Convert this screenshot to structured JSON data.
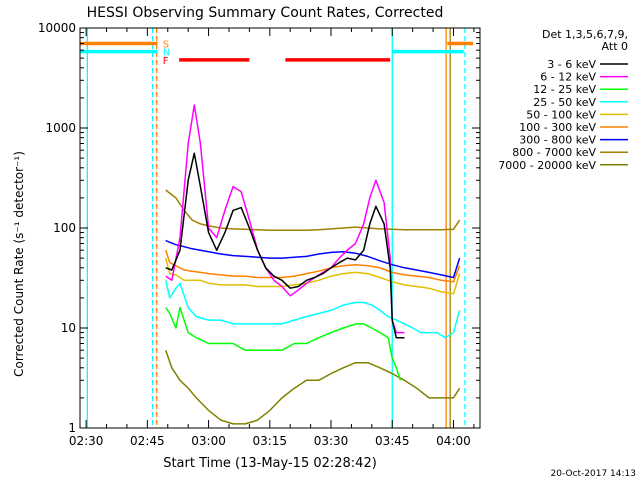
{
  "chart_data": {
    "type": "line",
    "title": "HESSI Observing Summary Count Rates, Corrected",
    "ylabel": "Corrected Count Rate (s⁻¹ detector⁻¹)",
    "xlabel": "Start Time (13-May-15 02:28:42)",
    "footer": "20-Oct-2017 14:13",
    "legend_header": [
      "Det 1,3,5,6,7,9,",
      "Att 0"
    ],
    "legend_placement": "right",
    "x_range_minutes": [
      -1.5,
      96.5
    ],
    "y_range": [
      1,
      10000
    ],
    "y_scale": "log",
    "x_ticks": [
      {
        "t": 0,
        "label": "02:30"
      },
      {
        "t": 15,
        "label": "02:45"
      },
      {
        "t": 30,
        "label": "03:00"
      },
      {
        "t": 45,
        "label": "03:15"
      },
      {
        "t": 60,
        "label": "03:30"
      },
      {
        "t": 75,
        "label": "03:45"
      },
      {
        "t": 90,
        "label": "04:00"
      }
    ],
    "y_ticks": [
      {
        "v": 1,
        "label": "1"
      },
      {
        "v": 10,
        "label": "10"
      },
      {
        "v": 100,
        "label": "100"
      },
      {
        "v": 1000,
        "label": "1000"
      },
      {
        "v": 10000,
        "label": "10000"
      }
    ],
    "flag_bars": [
      {
        "label": "S",
        "color": "#ff8000",
        "y": 7000,
        "segments": [
          [
            -1.5,
            17.5
          ],
          [
            88.5,
            94.8
          ]
        ]
      },
      {
        "label": "N",
        "color": "#00ffff",
        "y": 5800,
        "segments": [
          [
            -1.5,
            17.5
          ],
          [
            75.0,
            92.5
          ]
        ]
      },
      {
        "label": "F",
        "color": "#ff0000",
        "y": 4800,
        "segments": [
          [
            22.8,
            40.0
          ],
          [
            48.8,
            74.5
          ]
        ]
      }
    ],
    "vertical_lines": [
      {
        "t": 0.3,
        "color": "#00ffff",
        "style": "solid"
      },
      {
        "t": 16.3,
        "color": "#00ffff",
        "style": "dashed"
      },
      {
        "t": 17.3,
        "color": "#ff8000",
        "style": "dashed"
      },
      {
        "t": 75.0,
        "color": "#00ffff",
        "style": "solid"
      },
      {
        "t": 88.2,
        "color": "#ff8000",
        "style": "solid"
      },
      {
        "t": 89.2,
        "color": "#a08000",
        "style": "solid"
      },
      {
        "t": 92.8,
        "color": "#00ffff",
        "style": "dashed"
      }
    ],
    "series": [
      {
        "name": "3 - 6 keV",
        "color": "#000000",
        "x": [
          19.5,
          21,
          23,
          25,
          26.5,
          28,
          30,
          32,
          34,
          36,
          38,
          40,
          42,
          44,
          46,
          48,
          50,
          52,
          54,
          56,
          58,
          60,
          62,
          64,
          66,
          68,
          69.5,
          71,
          73,
          74.5,
          75,
          76,
          78
        ],
        "y": [
          40,
          38,
          60,
          300,
          560,
          260,
          90,
          60,
          90,
          150,
          160,
          100,
          60,
          40,
          33,
          30,
          25,
          26,
          30,
          32,
          35,
          40,
          45,
          50,
          48,
          60,
          110,
          165,
          110,
          40,
          12,
          8,
          8
        ]
      },
      {
        "name": "6 - 12 keV",
        "color": "#ff00ff",
        "x": [
          19.5,
          21,
          23,
          25,
          26.5,
          28,
          30,
          32,
          34,
          36,
          38,
          40,
          42,
          44,
          46,
          48,
          50,
          52,
          54,
          56,
          58,
          60,
          62,
          64,
          66,
          68,
          69.5,
          71,
          73,
          74.5,
          75,
          76,
          78
        ],
        "y": [
          33,
          30,
          80,
          700,
          1700,
          700,
          100,
          80,
          150,
          260,
          230,
          120,
          60,
          40,
          30,
          26,
          21,
          24,
          28,
          32,
          36,
          40,
          50,
          60,
          70,
          110,
          200,
          300,
          180,
          50,
          12,
          9,
          9
        ]
      },
      {
        "name": "12 - 25 keV",
        "color": "#00ff00",
        "x": [
          19.5,
          20.5,
          22,
          23,
          25,
          27,
          30,
          33,
          36,
          39,
          42,
          45,
          48,
          51,
          54,
          57,
          60,
          63,
          66,
          68,
          70,
          72,
          74,
          75,
          76,
          77
        ],
        "y": [
          16,
          14,
          10,
          16,
          9,
          8,
          7,
          7,
          7,
          6,
          6,
          6,
          6,
          7,
          7,
          8,
          9,
          10,
          11,
          11,
          10,
          9,
          8,
          5,
          4,
          3
        ]
      },
      {
        "name": "25 - 50 keV",
        "color": "#00ffff",
        "x": [
          19.5,
          20.5,
          22,
          23,
          25,
          27,
          30,
          33,
          36,
          39,
          42,
          45,
          48,
          51,
          54,
          57,
          60,
          63,
          66,
          68,
          70,
          72,
          74,
          76,
          78,
          80,
          82,
          84,
          86,
          88,
          90,
          91.5
        ],
        "y": [
          30,
          20,
          25,
          28,
          16,
          13,
          12,
          12,
          11,
          11,
          11,
          11,
          11,
          12,
          13,
          14,
          15,
          17,
          18,
          18,
          17,
          15,
          13,
          12,
          11,
          10,
          9,
          9,
          9,
          8,
          9,
          15
        ]
      },
      {
        "name": "50 - 100 keV",
        "color": "#e0c000",
        "x": [
          19.5,
          20.5,
          22,
          24,
          26,
          28,
          30,
          33,
          36,
          39,
          42,
          45,
          48,
          51,
          54,
          57,
          60,
          63,
          66,
          69,
          72,
          75,
          78,
          81,
          84,
          87,
          90,
          91.5
        ],
        "y": [
          50,
          35,
          34,
          30,
          30,
          30,
          28,
          27,
          27,
          27,
          26,
          26,
          26,
          27,
          28,
          30,
          33,
          35,
          36,
          35,
          32,
          29,
          27,
          26,
          25,
          23,
          22,
          35
        ]
      },
      {
        "name": "100 - 300 keV",
        "color": "#ff8000",
        "x": [
          19.5,
          20.5,
          22,
          24,
          26,
          28,
          30,
          33,
          36,
          39,
          42,
          45,
          48,
          51,
          54,
          57,
          60,
          63,
          66,
          69,
          72,
          75,
          78,
          81,
          84,
          87,
          90,
          91.5
        ],
        "y": [
          60,
          45,
          42,
          38,
          37,
          36,
          35,
          34,
          33,
          33,
          32,
          32,
          32,
          33,
          35,
          37,
          40,
          42,
          43,
          42,
          40,
          36,
          34,
          33,
          32,
          30,
          29,
          42
        ]
      },
      {
        "name": "300 - 800 keV",
        "color": "#0000ff",
        "x": [
          19.5,
          20.5,
          22,
          24,
          26,
          28,
          30,
          33,
          36,
          39,
          42,
          45,
          48,
          51,
          54,
          57,
          60,
          63,
          66,
          69,
          72,
          75,
          78,
          81,
          84,
          87,
          90,
          91.5
        ],
        "y": [
          75,
          72,
          68,
          65,
          62,
          60,
          58,
          55,
          53,
          52,
          51,
          50,
          50,
          51,
          52,
          55,
          57,
          58,
          56,
          52,
          47,
          43,
          40,
          38,
          36,
          34,
          32,
          50
        ]
      },
      {
        "name": "800 - 7000 keV",
        "color": "#a08000",
        "x": [
          19.5,
          22,
          24,
          26,
          28,
          30,
          33,
          36,
          39,
          42,
          45,
          48,
          51,
          54,
          57,
          60,
          63,
          66,
          69,
          72,
          75,
          78,
          81,
          84,
          87,
          90,
          91.5
        ],
        "y": [
          240,
          200,
          150,
          120,
          110,
          105,
          100,
          98,
          97,
          96,
          95,
          95,
          95,
          95,
          96,
          98,
          100,
          102,
          100,
          98,
          97,
          96,
          96,
          96,
          96,
          97,
          120
        ]
      },
      {
        "name": "7000 - 20000 keV",
        "color": "#808000",
        "x": [
          19.5,
          21,
          23,
          25,
          27,
          30,
          33,
          36,
          39,
          42,
          45,
          48,
          51,
          54,
          57,
          60,
          63,
          66,
          69,
          72,
          75,
          78,
          81,
          84,
          87,
          90,
          91.5
        ],
        "y": [
          6,
          4,
          3,
          2.5,
          2,
          1.5,
          1.2,
          1.1,
          1.1,
          1.2,
          1.5,
          2,
          2.5,
          3,
          3,
          3.5,
          4,
          4.5,
          4.5,
          4,
          3.5,
          3,
          2.5,
          2,
          2,
          2,
          2.5
        ]
      }
    ]
  }
}
